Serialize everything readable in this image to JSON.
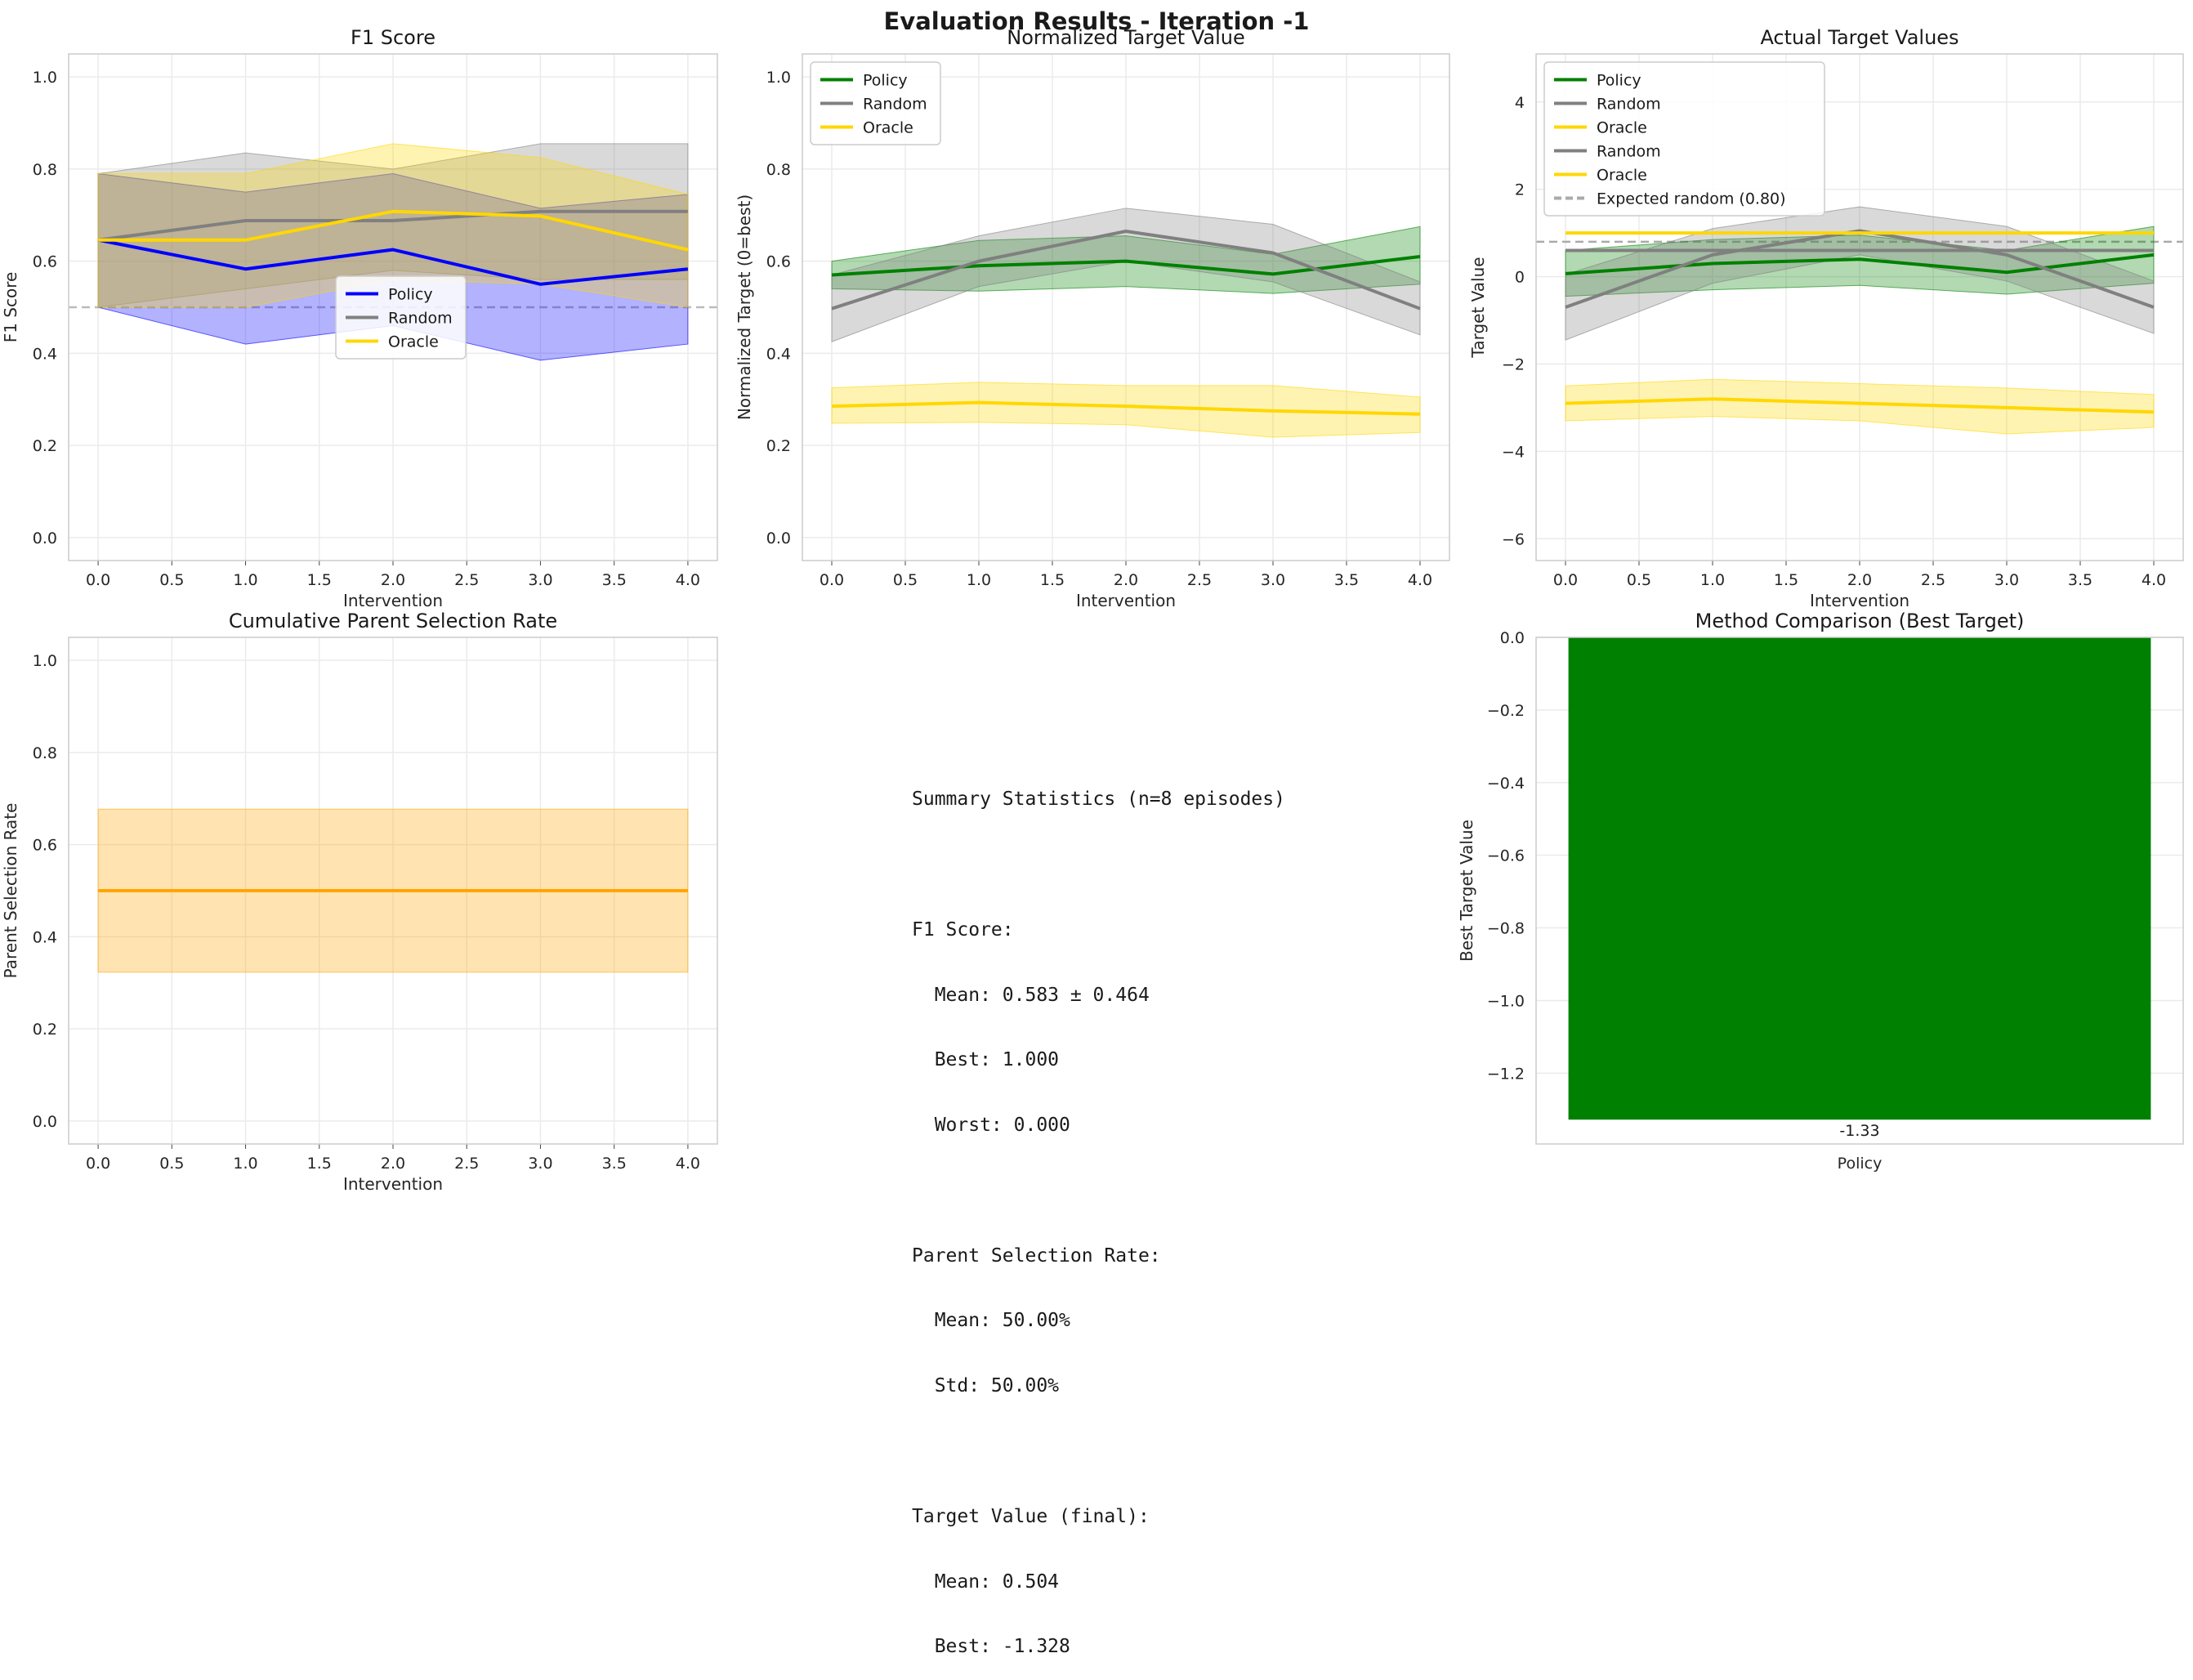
{
  "suptitle": "Evaluation Results - Iteration -1",
  "chart_data": [
    {
      "id": "f1",
      "type": "line",
      "title": "F1 Score",
      "xlabel": "Intervention",
      "ylabel": "F1 Score",
      "xlim": [
        -0.2,
        4.2
      ],
      "ylim": [
        -0.05,
        1.05
      ],
      "xticks": [
        "0.0",
        "0.5",
        "1.0",
        "1.5",
        "2.0",
        "2.5",
        "3.0",
        "3.5",
        "4.0"
      ],
      "yticks": [
        "0.0",
        "0.2",
        "0.4",
        "0.6",
        "0.8",
        "1.0"
      ],
      "grid": true,
      "legend": "center",
      "x": [
        0,
        1,
        2,
        3,
        4
      ],
      "hlines": [
        {
          "y": 0.5,
          "color": "#bbbbbb",
          "style": "dashed"
        }
      ],
      "series": [
        {
          "name": "Policy",
          "color": "#0000ff",
          "values": [
            0.646,
            0.583,
            0.625,
            0.55,
            0.583
          ],
          "band_low": [
            0.5,
            0.42,
            0.46,
            0.385,
            0.42
          ],
          "band_high": [
            0.79,
            0.75,
            0.79,
            0.715,
            0.745
          ]
        },
        {
          "name": "Random",
          "color": "#808080",
          "values": [
            0.646,
            0.688,
            0.688,
            0.708,
            0.708
          ],
          "band_low": [
            0.5,
            0.54,
            0.58,
            0.56,
            0.56
          ],
          "band_high": [
            0.79,
            0.835,
            0.8,
            0.855,
            0.855
          ]
        },
        {
          "name": "Oracle",
          "color": "#ffd700",
          "values": [
            0.646,
            0.646,
            0.708,
            0.698,
            0.625
          ],
          "band_low": [
            0.5,
            0.5,
            0.56,
            0.55,
            0.5
          ],
          "band_high": [
            0.79,
            0.79,
            0.855,
            0.825,
            0.745
          ]
        }
      ]
    },
    {
      "id": "norm",
      "type": "line",
      "title": "Normalized Target Value",
      "xlabel": "Intervention",
      "ylabel": "Normalized Target (0=best)",
      "xlim": [
        -0.2,
        4.2
      ],
      "ylim": [
        -0.05,
        1.05
      ],
      "xticks": [
        "0.0",
        "0.5",
        "1.0",
        "1.5",
        "2.0",
        "2.5",
        "3.0",
        "3.5",
        "4.0"
      ],
      "yticks": [
        "0.0",
        "0.2",
        "0.4",
        "0.6",
        "0.8",
        "1.0"
      ],
      "grid": true,
      "legend": "upper left",
      "x": [
        0,
        1,
        2,
        3,
        4
      ],
      "hlines": [],
      "series": [
        {
          "name": "Policy",
          "color": "#008000",
          "values": [
            0.57,
            0.59,
            0.6,
            0.572,
            0.61
          ],
          "band_low": [
            0.54,
            0.535,
            0.545,
            0.53,
            0.55
          ],
          "band_high": [
            0.6,
            0.645,
            0.655,
            0.615,
            0.675
          ]
        },
        {
          "name": "Random",
          "color": "#808080",
          "values": [
            0.497,
            0.6,
            0.665,
            0.618,
            0.497
          ],
          "band_low": [
            0.425,
            0.545,
            0.6,
            0.555,
            0.44
          ],
          "band_high": [
            0.57,
            0.655,
            0.715,
            0.68,
            0.555
          ]
        },
        {
          "name": "Oracle",
          "color": "#ffd700",
          "values": [
            0.285,
            0.293,
            0.285,
            0.275,
            0.268
          ],
          "band_low": [
            0.248,
            0.25,
            0.245,
            0.218,
            0.228
          ],
          "band_high": [
            0.325,
            0.337,
            0.33,
            0.33,
            0.305
          ]
        }
      ]
    },
    {
      "id": "actual",
      "type": "line",
      "title": "Actual Target Values",
      "xlabel": "Intervention",
      "ylabel": "Target Value",
      "xlim": [
        -0.2,
        4.2
      ],
      "ylim": [
        -6.5,
        5.1
      ],
      "xticks": [
        "0.0",
        "0.5",
        "1.0",
        "1.5",
        "2.0",
        "2.5",
        "3.0",
        "3.5",
        "4.0"
      ],
      "yticks": [
        "−6",
        "−4",
        "−2",
        "0",
        "2",
        "4"
      ],
      "grid": true,
      "legend": "upper left",
      "x": [
        0,
        1,
        2,
        3,
        4
      ],
      "hlines": [
        {
          "y": 0.8,
          "color": "#aaaaaa",
          "style": "dashed"
        }
      ],
      "series": [
        {
          "name": "Policy",
          "color": "#008000",
          "values": [
            0.07,
            0.3,
            0.4,
            0.1,
            0.5
          ],
          "band_low": [
            -0.45,
            -0.3,
            -0.2,
            -0.4,
            -0.15
          ],
          "band_high": [
            0.6,
            0.85,
            0.95,
            0.6,
            1.15
          ]
        },
        {
          "name": "Random",
          "color": "#808080",
          "values": [
            -0.7,
            0.5,
            1.05,
            0.5,
            -0.7
          ],
          "band_low": [
            -1.45,
            -0.15,
            0.5,
            -0.1,
            -1.3
          ],
          "band_high": [
            0.05,
            1.1,
            1.6,
            1.15,
            -0.1
          ]
        },
        {
          "name": "Oracle",
          "color": "#ffd700",
          "values": [
            -2.9,
            -2.8,
            -2.9,
            -3.0,
            -3.1
          ],
          "band_low": [
            -3.3,
            -3.2,
            -3.3,
            -3.6,
            -3.45
          ],
          "band_high": [
            -2.5,
            -2.35,
            -2.45,
            -2.55,
            -2.7
          ]
        },
        {
          "name": "Random",
          "color": "#808080",
          "values": [
            0.6,
            0.6,
            0.6,
            0.6,
            0.6
          ],
          "flat": true
        },
        {
          "name": "Oracle",
          "color": "#ffd700",
          "values": [
            1.0,
            1.0,
            1.0,
            1.0,
            1.0
          ],
          "flat": true
        }
      ],
      "extra_legend": [
        {
          "name": "Expected random (0.80)",
          "color": "#aaaaaa",
          "style": "dashed"
        }
      ]
    },
    {
      "id": "psr",
      "type": "line",
      "title": "Cumulative Parent Selection Rate",
      "xlabel": "Intervention",
      "ylabel": "Parent Selection Rate",
      "xlim": [
        -0.2,
        4.2
      ],
      "ylim": [
        -0.05,
        1.05
      ],
      "xticks": [
        "0.0",
        "0.5",
        "1.0",
        "1.5",
        "2.0",
        "2.5",
        "3.0",
        "3.5",
        "4.0"
      ],
      "yticks": [
        "0.0",
        "0.2",
        "0.4",
        "0.6",
        "0.8",
        "1.0"
      ],
      "grid": true,
      "legend": "none",
      "x": [
        0,
        1,
        2,
        3,
        4
      ],
      "hlines": [],
      "series": [
        {
          "name": "",
          "color": "#ffa500",
          "values": [
            0.5,
            0.5,
            0.5,
            0.5,
            0.5
          ],
          "band_low": [
            0.323,
            0.323,
            0.323,
            0.323,
            0.323
          ],
          "band_high": [
            0.677,
            0.677,
            0.677,
            0.677,
            0.677
          ]
        }
      ]
    },
    {
      "id": "method",
      "type": "bar",
      "title": "Method Comparison (Best Target)",
      "xlabel": "",
      "ylabel": "Best Target Value",
      "categories": [
        "Policy"
      ],
      "values": [
        -1.328
      ],
      "value_labels": [
        "-1.33"
      ],
      "colors": [
        "#008000"
      ],
      "ylim": [
        -1.395,
        0.0
      ],
      "yticks": [
        "0.0",
        "−0.2",
        "−0.4",
        "−0.6",
        "−0.8",
        "−1.0",
        "−1.2"
      ],
      "grid": true
    }
  ],
  "summary_lines": [
    "Summary Statistics (n=8 episodes)",
    "",
    "F1 Score:",
    "  Mean: 0.583 ± 0.464",
    "  Best: 1.000",
    "  Worst: 0.000",
    "",
    "Parent Selection Rate:",
    "  Mean: 50.00%",
    "  Std: 50.00%",
    "",
    "Target Value (final):",
    "  Mean: 0.504",
    "  Best: -1.328"
  ]
}
